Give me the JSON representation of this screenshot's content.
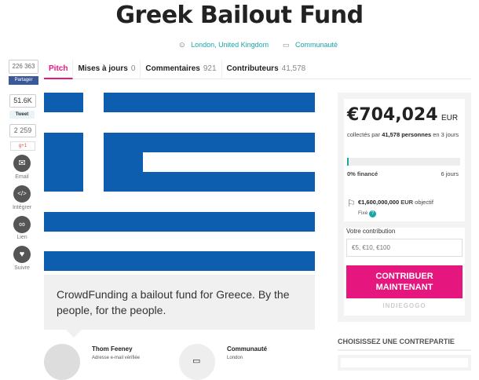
{
  "title": "Greek Bailout Fund",
  "location": "London, United Kingdom",
  "category": "Communauté",
  "share": {
    "count": "226 363",
    "facebook": "Partager",
    "tweet_count": "51.6K",
    "tweet": "Tweet",
    "gplus_count": "2 259",
    "gplus": "g+1",
    "email": "Email",
    "embed": "Intégrer",
    "link": "Lien",
    "follow": "Suivre"
  },
  "tabs": [
    {
      "label": "Pitch",
      "count": ""
    },
    {
      "label": "Mises à jours",
      "count": "0"
    },
    {
      "label": "Commentaires",
      "count": "921"
    },
    {
      "label": "Contributeurs",
      "count": "41,578"
    }
  ],
  "funding": {
    "amount": "€704,024",
    "currency": "EUR",
    "collected_prefix": "collectés par",
    "backers": "41,578 personnes",
    "collected_suffix": "en 3 jours",
    "progress_percent": 0.5,
    "funded": "0% financé",
    "days": "6 jours",
    "goal": "€1,600,000,000",
    "goal_currency": "EUR",
    "goal_label": "objectif",
    "fixed": "Fixé",
    "help": "?"
  },
  "contribution": {
    "label": "Votre contribution",
    "placeholder": "€5, €10, €100",
    "button": "CONTRIBUER MAINTENANT",
    "brand": "INDIEGOGO"
  },
  "pitch": "CrowdFunding a bailout fund for Greece. By the people, for the people.",
  "owner": {
    "name": "Thom Feeney",
    "sub": "Adresse e-mail vérifiée"
  },
  "community": {
    "name": "Communauté",
    "sub": "London"
  },
  "perks_title": "CHOISISSEZ UNE CONTREPARTIE",
  "colors": {
    "accent": "#e5177e",
    "teal": "#1aa6a6",
    "flag_blue": "#0d5eaf"
  }
}
